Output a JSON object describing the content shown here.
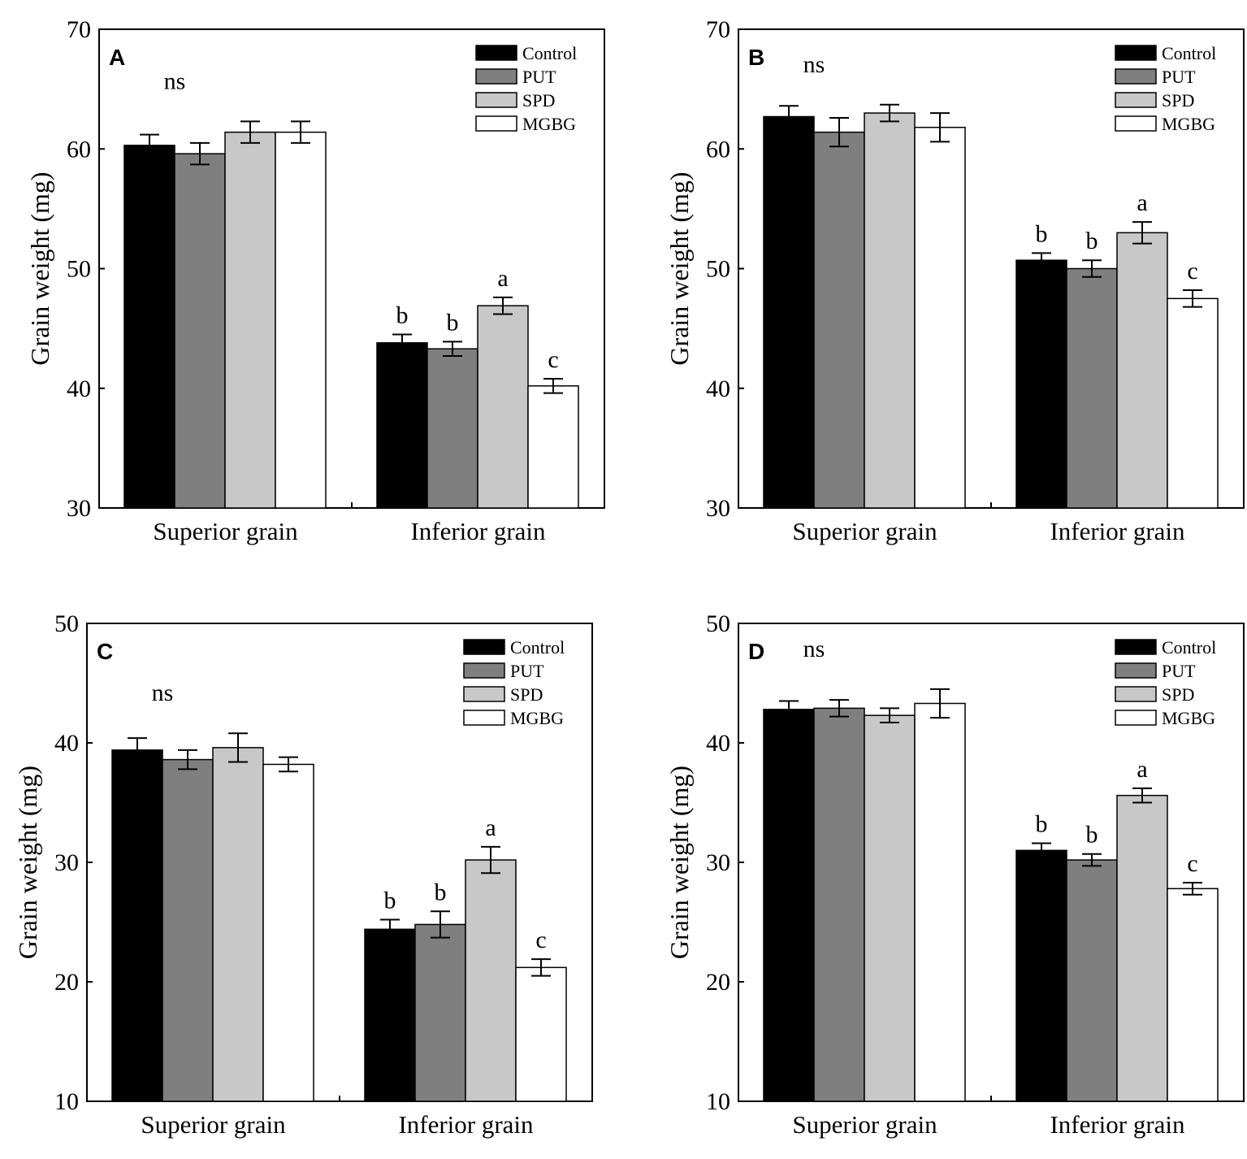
{
  "chart_data": [
    {
      "type": "bar",
      "panel": "A",
      "ylabel": "Grain weight (mg)",
      "ylim": [
        30,
        70
      ],
      "yticks": [
        "30",
        "40",
        "50",
        "60",
        "70"
      ],
      "categories": [
        "Superior grain",
        "Inferior grain"
      ],
      "series": [
        {
          "name": "Control",
          "color": "#000000",
          "values": [
            60.3,
            43.8
          ],
          "errors": [
            0.9,
            0.7
          ]
        },
        {
          "name": "PUT",
          "color": "#7f7f7f",
          "values": [
            59.6,
            43.3
          ],
          "errors": [
            0.9,
            0.6
          ]
        },
        {
          "name": "SPD",
          "color": "#c8c8c8",
          "values": [
            61.4,
            46.9
          ],
          "errors": [
            0.9,
            0.7
          ]
        },
        {
          "name": "MGBG",
          "color": "#ffffff",
          "values": [
            61.4,
            40.2
          ],
          "errors": [
            0.9,
            0.6
          ]
        }
      ],
      "significance": [
        [
          "ns"
        ],
        [
          "b",
          "b",
          "a",
          "c"
        ]
      ]
    },
    {
      "type": "bar",
      "panel": "B",
      "ylabel": "Grain weight (mg)",
      "ylim": [
        30,
        70
      ],
      "yticks": [
        "30",
        "40",
        "50",
        "60",
        "70"
      ],
      "categories": [
        "Superior grain",
        "Inferior grain"
      ],
      "series": [
        {
          "name": "Control",
          "color": "#000000",
          "values": [
            62.7,
            50.7
          ],
          "errors": [
            0.9,
            0.6
          ]
        },
        {
          "name": "PUT",
          "color": "#7f7f7f",
          "values": [
            61.4,
            50.0
          ],
          "errors": [
            1.2,
            0.7
          ]
        },
        {
          "name": "SPD",
          "color": "#c8c8c8",
          "values": [
            63.0,
            53.0
          ],
          "errors": [
            0.7,
            0.9
          ]
        },
        {
          "name": "MGBG",
          "color": "#ffffff",
          "values": [
            61.8,
            47.5
          ],
          "errors": [
            1.2,
            0.7
          ]
        }
      ],
      "significance": [
        [
          "ns"
        ],
        [
          "b",
          "b",
          "a",
          "c"
        ]
      ]
    },
    {
      "type": "bar",
      "panel": "C",
      "ylabel": "Grain weight (mg)",
      "ylim": [
        10,
        50
      ],
      "yticks": [
        "10",
        "20",
        "30",
        "40",
        "50"
      ],
      "categories": [
        "Superior grain",
        "Inferior grain"
      ],
      "series": [
        {
          "name": "Control",
          "color": "#000000",
          "values": [
            39.4,
            24.4
          ],
          "errors": [
            1.0,
            0.8
          ]
        },
        {
          "name": "PUT",
          "color": "#7f7f7f",
          "values": [
            38.6,
            24.8
          ],
          "errors": [
            0.8,
            1.1
          ]
        },
        {
          "name": "SPD",
          "color": "#c8c8c8",
          "values": [
            39.6,
            30.2
          ],
          "errors": [
            1.2,
            1.1
          ]
        },
        {
          "name": "MGBG",
          "color": "#ffffff",
          "values": [
            38.2,
            21.2
          ],
          "errors": [
            0.6,
            0.7
          ]
        }
      ],
      "significance": [
        [
          "ns"
        ],
        [
          "b",
          "b",
          "a",
          "c"
        ]
      ]
    },
    {
      "type": "bar",
      "panel": "D",
      "ylabel": "Grain weight (mg)",
      "ylim": [
        10,
        50
      ],
      "yticks": [
        "10",
        "20",
        "30",
        "40",
        "50"
      ],
      "categories": [
        "Superior grain",
        "Inferior grain"
      ],
      "series": [
        {
          "name": "Control",
          "color": "#000000",
          "values": [
            42.8,
            31.0
          ],
          "errors": [
            0.7,
            0.6
          ]
        },
        {
          "name": "PUT",
          "color": "#7f7f7f",
          "values": [
            42.9,
            30.2
          ],
          "errors": [
            0.7,
            0.5
          ]
        },
        {
          "name": "SPD",
          "color": "#c8c8c8",
          "values": [
            42.3,
            35.6
          ],
          "errors": [
            0.6,
            0.6
          ]
        },
        {
          "name": "MGBG",
          "color": "#ffffff",
          "values": [
            43.3,
            27.8
          ],
          "errors": [
            1.2,
            0.5
          ]
        }
      ],
      "significance": [
        [
          "ns"
        ],
        [
          "b",
          "b",
          "a",
          "c"
        ]
      ]
    }
  ]
}
